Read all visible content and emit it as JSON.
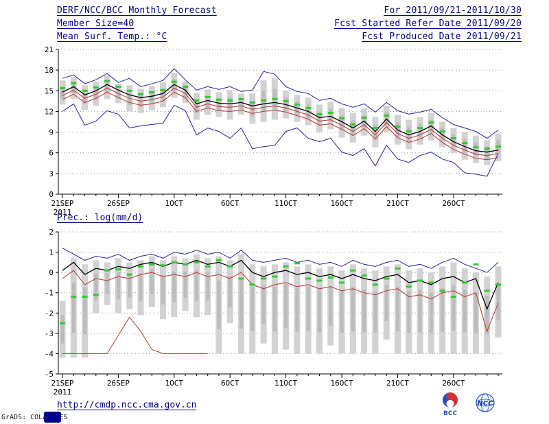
{
  "header": {
    "title": "DERF/NCC/BCC Monthly Forecast",
    "member_size": "Member Size=40",
    "variable_label": "Mean Surf. Temp.: °C",
    "for_range": "For 2011/09/21-2011/10/30",
    "fcst_started": "Fcst Started Refer Date 2011/09/20",
    "fcst_produced": "Fcst Produced Date 2011/09/21",
    "text_color": "#00008b"
  },
  "precip_label": "Prec.: log(mm/d)",
  "footer": {
    "url": "http://cmdp.ncc.cma.gov.cn",
    "credit": "GrADS: COLA/IGES",
    "logo_bcc": "BCC",
    "logo_ncc": "NCC"
  },
  "colors": {
    "envelope_blue": "#2020b0",
    "mean_black": "#000000",
    "climatology_red": "#c03030",
    "observation_green": "#2ecc2e",
    "spread_gray": "#d2d2d2"
  },
  "chart_data": [
    {
      "type": "line",
      "name": "mean-surf-temp",
      "title": "Mean Surf. Temp.: °C",
      "ylabel": "°C",
      "ylim": [
        0,
        21
      ],
      "ystep": 3,
      "grid": true,
      "n_points": 40,
      "xtick_interval": 5,
      "xticklabels": [
        "21SEP",
        "26SEP",
        "1OCT",
        "6OCT",
        "11OCT",
        "16OCT",
        "21OCT",
        "26OCT"
      ],
      "x_year": "2011",
      "bars": {
        "label": "ensemble spread",
        "color": "#d2d2d2",
        "inner_color": "#bcbcbc",
        "high": [
          16.5,
          17.0,
          15.8,
          16.3,
          17.2,
          16.0,
          15.8,
          15.3,
          15.7,
          16.2,
          17.6,
          16.3,
          14.7,
          15.2,
          14.8,
          15.1,
          14.6,
          14.6,
          16.5,
          16.8,
          15.0,
          14.4,
          14.0,
          13.0,
          13.4,
          12.5,
          11.8,
          12.5,
          11.2,
          12.8,
          11.5,
          10.8,
          11.2,
          11.8,
          10.5,
          9.6,
          9.0,
          8.5,
          7.8,
          8.8
        ],
        "low": [
          13.0,
          13.8,
          12.2,
          12.8,
          13.8,
          13.2,
          12.0,
          11.8,
          12.2,
          12.6,
          14.0,
          13.2,
          10.8,
          11.5,
          11.2,
          10.8,
          11.5,
          10.2,
          10.5,
          10.8,
          11.0,
          10.5,
          10.0,
          9.0,
          9.4,
          8.2,
          7.5,
          8.5,
          6.8,
          9.0,
          7.2,
          6.5,
          7.2,
          7.8,
          6.8,
          6.0,
          5.0,
          4.5,
          4.2,
          4.8
        ]
      },
      "series": [
        {
          "name": "ensemble-max",
          "type": "line",
          "color": "#2020b0",
          "values": [
            16.8,
            17.3,
            16.0,
            16.6,
            17.5,
            16.2,
            16.8,
            15.6,
            16.0,
            16.5,
            18.2,
            16.6,
            15.1,
            15.6,
            15.2,
            15.6,
            14.9,
            15.1,
            17.8,
            17.4,
            15.6,
            14.9,
            14.6,
            13.6,
            13.9,
            13.1,
            12.6,
            13.1,
            11.9,
            13.3,
            12.1,
            11.6,
            11.9,
            12.3,
            11.1,
            10.1,
            9.6,
            9.1,
            8.1,
            9.3
          ]
        },
        {
          "name": "ensemble-min",
          "type": "line",
          "color": "#2020b0",
          "values": [
            12.0,
            13.1,
            10.0,
            10.6,
            12.1,
            11.6,
            9.6,
            9.9,
            10.1,
            10.3,
            12.9,
            12.1,
            8.6,
            9.6,
            9.1,
            8.1,
            9.6,
            6.6,
            6.9,
            7.1,
            9.1,
            9.6,
            8.1,
            7.6,
            8.1,
            6.1,
            5.6,
            6.6,
            4.1,
            7.1,
            5.1,
            4.6,
            5.6,
            6.1,
            5.1,
            4.6,
            3.1,
            2.9,
            2.6,
            5.9
          ]
        },
        {
          "name": "ensemble-mean",
          "type": "line",
          "color": "#000000",
          "width": 1.3,
          "values": [
            14.8,
            15.6,
            14.4,
            15.0,
            15.9,
            15.1,
            14.4,
            14.0,
            14.2,
            14.6,
            15.9,
            15.1,
            13.1,
            13.6,
            13.2,
            13.1,
            13.3,
            12.8,
            13.1,
            13.3,
            13.0,
            12.5,
            12.0,
            11.1,
            11.3,
            10.5,
            9.6,
            10.6,
            9.1,
            10.9,
            9.3,
            8.6,
            9.1,
            9.9,
            8.6,
            7.6,
            6.9,
            6.3,
            6.1,
            6.4
          ]
        },
        {
          "name": "climatology-upper",
          "type": "line",
          "color": "#c03030",
          "values": [
            14.3,
            15.1,
            13.9,
            14.5,
            15.4,
            14.6,
            13.9,
            13.5,
            13.7,
            14.1,
            15.4,
            14.6,
            12.6,
            13.1,
            12.7,
            12.6,
            12.8,
            12.3,
            12.6,
            12.8,
            12.5,
            12.0,
            11.5,
            10.6,
            10.8,
            10.0,
            9.1,
            10.1,
            8.6,
            10.4,
            8.8,
            8.1,
            8.6,
            9.4,
            8.1,
            7.1,
            6.4,
            5.8,
            5.6,
            5.9
          ]
        },
        {
          "name": "climatology-lower",
          "type": "line",
          "color": "#c03030",
          "values": [
            13.7,
            14.5,
            13.3,
            13.9,
            14.8,
            14.0,
            13.3,
            12.9,
            13.1,
            13.5,
            14.8,
            14.0,
            12.0,
            12.5,
            12.1,
            12.0,
            12.2,
            11.7,
            12.0,
            12.2,
            11.9,
            11.4,
            10.9,
            10.0,
            10.2,
            9.4,
            8.5,
            9.5,
            8.0,
            9.8,
            8.2,
            7.5,
            8.0,
            8.8,
            7.5,
            6.5,
            5.8,
            5.2,
            5.0,
            5.3
          ]
        },
        {
          "name": "observation",
          "type": "markers",
          "color": "#2ecc2e",
          "values": [
            15.4,
            16.1,
            15.0,
            15.5,
            16.4,
            15.6,
            15.0,
            14.5,
            14.8,
            15.1,
            16.3,
            15.6,
            13.6,
            14.1,
            13.7,
            13.6,
            13.8,
            13.3,
            13.6,
            13.8,
            13.5,
            13.0,
            12.5,
            11.6,
            11.8,
            11.0,
            10.1,
            11.1,
            9.6,
            11.4,
            9.8,
            9.1,
            9.6,
            10.4,
            9.1,
            8.1,
            7.4,
            6.8,
            6.6,
            6.9
          ]
        }
      ]
    },
    {
      "type": "line",
      "name": "precipitation",
      "title": "Prec.: log(mm/d)",
      "ylabel": "log(mm/d)",
      "ylim": [
        -5,
        2
      ],
      "ystep": 1,
      "grid": true,
      "n_points": 40,
      "xtick_interval": 5,
      "xticklabels": [
        "21SEP",
        "26SEP",
        "1OCT",
        "6OCT",
        "11OCT",
        "16OCT",
        "21OCT",
        "26OCT"
      ],
      "x_year": "2011",
      "bars": {
        "label": "ensemble spread",
        "color": "#d2d2d2",
        "inner_color": "#bcbcbc",
        "high": [
          -1.4,
          0.7,
          0.4,
          0.6,
          0.5,
          0.7,
          0.5,
          0.6,
          0.8,
          0.6,
          0.8,
          0.7,
          0.9,
          0.7,
          0.8,
          0.6,
          0.9,
          0.4,
          0.3,
          0.4,
          0.5,
          0.3,
          0.4,
          0.2,
          0.3,
          0.1,
          0.4,
          0.2,
          0.1,
          0.3,
          0.4,
          0.1,
          0.2,
          0.0,
          0.3,
          0.5,
          0.2,
          0.0,
          -0.2,
          0.3
        ],
        "low": [
          -4.2,
          -4.2,
          -4.2,
          -2.0,
          -1.6,
          -2.0,
          -1.8,
          -2.1,
          -1.7,
          -2.3,
          -2.2,
          -1.9,
          -2.2,
          -2.1,
          -4.0,
          -2.5,
          -4.0,
          -4.0,
          -3.5,
          -4.0,
          -3.8,
          -4.0,
          -4.0,
          -4.0,
          -3.6,
          -4.0,
          -4.0,
          -4.0,
          -4.0,
          -3.3,
          -4.0,
          -4.0,
          -4.0,
          -4.0,
          -4.0,
          -4.0,
          -4.0,
          -4.0,
          -4.0,
          -3.2
        ]
      },
      "series": [
        {
          "name": "ensemble-max",
          "type": "line",
          "color": "#2020b0",
          "values": [
            1.2,
            0.9,
            0.6,
            0.8,
            0.7,
            0.9,
            0.6,
            0.8,
            0.9,
            0.7,
            1.0,
            0.9,
            1.1,
            0.9,
            1.0,
            0.7,
            1.1,
            0.6,
            0.5,
            0.6,
            0.7,
            0.5,
            0.6,
            0.4,
            0.5,
            0.3,
            0.6,
            0.4,
            0.3,
            0.5,
            0.6,
            0.3,
            0.4,
            0.2,
            0.5,
            0.7,
            0.4,
            0.2,
            0.0,
            0.5
          ]
        },
        {
          "name": "ensemble-mean",
          "type": "line",
          "color": "#000000",
          "width": 1.3,
          "values": [
            0.1,
            0.5,
            -0.1,
            0.2,
            0.1,
            0.3,
            0.2,
            0.4,
            0.5,
            0.3,
            0.5,
            0.4,
            0.6,
            0.4,
            0.5,
            0.3,
            0.6,
            0.0,
            -0.2,
            0.0,
            0.1,
            -0.1,
            0.0,
            -0.2,
            -0.1,
            -0.3,
            -0.1,
            -0.3,
            -0.4,
            -0.2,
            -0.1,
            -0.5,
            -0.4,
            -0.6,
            -0.3,
            -0.2,
            -0.5,
            -0.3,
            -1.8,
            -0.5
          ]
        },
        {
          "name": "climatology",
          "type": "line",
          "color": "#c03030",
          "values": [
            -0.3,
            0.1,
            -0.6,
            -0.3,
            -0.4,
            -0.2,
            -0.3,
            -0.1,
            0.0,
            -0.2,
            -0.1,
            -0.2,
            0.0,
            -0.2,
            -0.1,
            -0.3,
            0.0,
            -0.6,
            -0.8,
            -0.6,
            -0.5,
            -0.7,
            -0.6,
            -0.8,
            -0.7,
            -0.9,
            -0.8,
            -1.0,
            -1.1,
            -0.9,
            -0.8,
            -1.2,
            -1.1,
            -1.3,
            -1.0,
            -0.9,
            -1.2,
            -1.0,
            -2.9,
            -1.5
          ]
        },
        {
          "name": "ensemble-min-floor",
          "type": "line",
          "color": "#c03030",
          "values": [
            -4,
            -4,
            -4,
            -4,
            -4,
            -3.1,
            -2.2,
            -2.9,
            -3.8,
            -4,
            -4,
            -4,
            -4,
            -4,
            null,
            null,
            null,
            null,
            null,
            null,
            null,
            null,
            null,
            null,
            null,
            null,
            null,
            null,
            null,
            null,
            null,
            null,
            null,
            null,
            null,
            null,
            null,
            null,
            null,
            null
          ]
        },
        {
          "name": "observation",
          "type": "markers",
          "color": "#2ecc2e",
          "values": [
            -2.5,
            -1.2,
            -1.2,
            -1.1,
            0.1,
            0.15,
            -0.1,
            0.3,
            0.4,
            0.35,
            0.5,
            0.4,
            0.5,
            0.3,
            0.6,
            0.3,
            -0.3,
            -0.6,
            -0.3,
            -0.2,
            0.3,
            0.45,
            -0.3,
            -0.4,
            -0.25,
            -0.5,
            0.1,
            -0.15,
            -0.6,
            -0.3,
            0.2,
            -0.7,
            -0.4,
            -0.5,
            -0.9,
            -1.2,
            -0.5,
            0.4,
            -0.9,
            -0.6
          ]
        }
      ]
    }
  ]
}
